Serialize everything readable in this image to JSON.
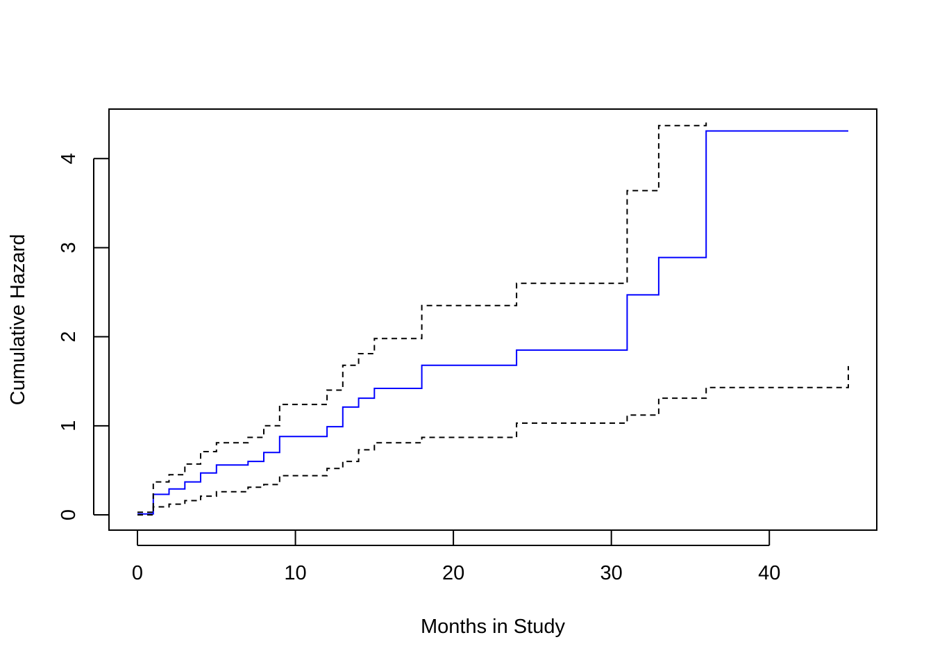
{
  "chart_data": {
    "type": "line",
    "step": true,
    "title": "",
    "xlabel": "Months in Study",
    "ylabel": "Cumulative Hazard",
    "xlim": [
      0,
      45
    ],
    "ylim": [
      0,
      4.4
    ],
    "x_ticks": [
      0,
      10,
      20,
      30,
      40
    ],
    "y_ticks": [
      0,
      1,
      2,
      3,
      4
    ],
    "grid": false,
    "legend": "none",
    "series": [
      {
        "role": "estimate",
        "color": "#0000ff",
        "line_style": "solid",
        "x": [
          0,
          1,
          2,
          3,
          4,
          5,
          7,
          8,
          9,
          12,
          13,
          14,
          15,
          18,
          24,
          31,
          33,
          36,
          45
        ],
        "y": [
          0.01,
          0.23,
          0.29,
          0.37,
          0.47,
          0.56,
          0.6,
          0.7,
          0.88,
          0.99,
          1.21,
          1.31,
          1.42,
          1.68,
          1.85,
          2.47,
          2.89,
          4.31,
          4.31
        ]
      },
      {
        "role": "upper-confidence-bound",
        "color": "#000000",
        "line_style": "dashed",
        "x": [
          0,
          1,
          2,
          3,
          4,
          5,
          7,
          8,
          9,
          12,
          13,
          14,
          15,
          18,
          24,
          31,
          33,
          36
        ],
        "y": [
          0.03,
          0.37,
          0.45,
          0.57,
          0.71,
          0.81,
          0.87,
          1.0,
          1.24,
          1.4,
          1.68,
          1.81,
          1.98,
          2.35,
          2.6,
          3.64,
          4.37,
          4.45
        ]
      },
      {
        "role": "lower-confidence-bound",
        "color": "#000000",
        "line_style": "dashed",
        "x": [
          0,
          1,
          2,
          3,
          4,
          5,
          7,
          8,
          9,
          12,
          13,
          14,
          15,
          18,
          24,
          31,
          33,
          36,
          45
        ],
        "y": [
          0.0,
          0.09,
          0.12,
          0.16,
          0.21,
          0.26,
          0.31,
          0.34,
          0.44,
          0.52,
          0.6,
          0.73,
          0.81,
          0.87,
          1.03,
          1.12,
          1.31,
          1.43,
          1.67
        ]
      }
    ]
  }
}
